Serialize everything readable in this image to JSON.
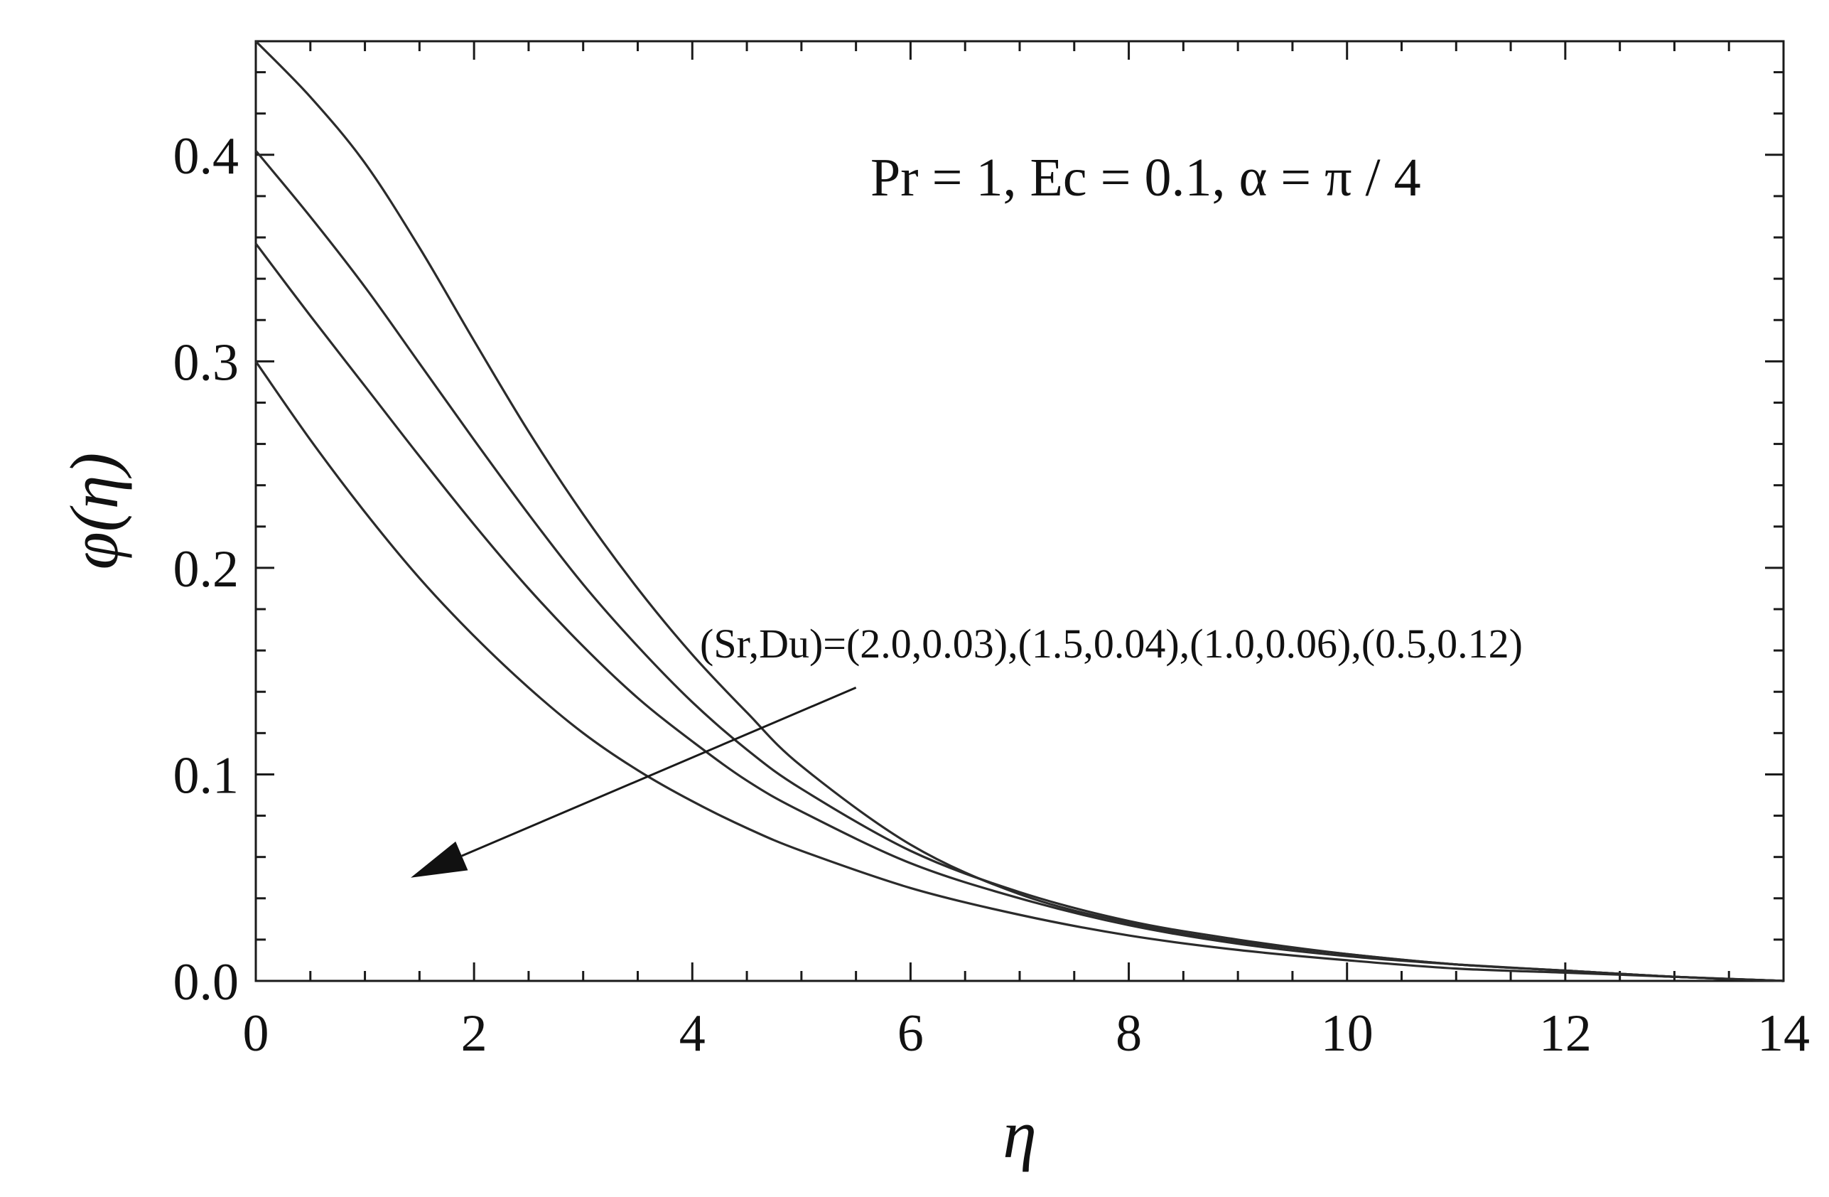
{
  "chart_data": {
    "type": "line",
    "title": "",
    "xlabel": "η",
    "ylabel": "φ(η)",
    "xlim": [
      0,
      14
    ],
    "ylim": [
      0,
      0.455
    ],
    "xticks": [
      0,
      2,
      4,
      6,
      8,
      10,
      12,
      14
    ],
    "xtick_labels": [
      "0",
      "2",
      "4",
      "6",
      "8",
      "10",
      "12",
      "14"
    ],
    "yticks": [
      0,
      0.1,
      0.2,
      0.3,
      0.4
    ],
    "ytick_labels": [
      "0.0",
      "0.1",
      "0.2",
      "0.3",
      "0.4"
    ],
    "grid": false,
    "line_color": "#2b2b2b",
    "annotations": {
      "parameters": "Pr = 1, Ec = 0.1, α = π / 4",
      "arrow_label": "(Sr,Du)=(2.0,0.03),(1.5,0.04),(1.0,0.06),(0.5,0.12)",
      "arrow_start": [
        5.5,
        0.142
      ],
      "arrow_end": [
        1.42,
        0.05
      ]
    },
    "series": [
      {
        "x": [
          0,
          0.5,
          1,
          1.5,
          2,
          2.5,
          3,
          3.5,
          4,
          4.5,
          5,
          6,
          7,
          8,
          9,
          10,
          11,
          12,
          13,
          14
        ],
        "y": [
          0.455,
          0.428,
          0.396,
          0.355,
          0.31,
          0.266,
          0.226,
          0.19,
          0.158,
          0.13,
          0.104,
          0.066,
          0.042,
          0.028,
          0.019,
          0.013,
          0.008,
          0.005,
          0.002,
          0.0
        ]
      },
      {
        "x": [
          0,
          0.5,
          1,
          1.5,
          2,
          2.5,
          3,
          3.5,
          4,
          4.5,
          5,
          6,
          7,
          8,
          9,
          10,
          11,
          12,
          13,
          14
        ],
        "y": [
          0.402,
          0.37,
          0.336,
          0.299,
          0.262,
          0.226,
          0.192,
          0.162,
          0.135,
          0.112,
          0.093,
          0.063,
          0.043,
          0.029,
          0.02,
          0.013,
          0.008,
          0.005,
          0.002,
          0.0
        ]
      },
      {
        "x": [
          0,
          0.5,
          1,
          1.5,
          2,
          2.5,
          3,
          3.5,
          4,
          4.5,
          5,
          6,
          7,
          8,
          9,
          10,
          11,
          12,
          13,
          14
        ],
        "y": [
          0.357,
          0.322,
          0.288,
          0.254,
          0.221,
          0.19,
          0.162,
          0.137,
          0.116,
          0.097,
          0.082,
          0.057,
          0.04,
          0.027,
          0.018,
          0.012,
          0.008,
          0.005,
          0.002,
          0.0
        ]
      },
      {
        "x": [
          0,
          0.5,
          1,
          1.5,
          2,
          2.5,
          3,
          3.5,
          4,
          4.5,
          5,
          6,
          7,
          8,
          9,
          10,
          11,
          12,
          13,
          14
        ],
        "y": [
          0.3,
          0.262,
          0.227,
          0.195,
          0.167,
          0.142,
          0.12,
          0.102,
          0.087,
          0.074,
          0.063,
          0.045,
          0.032,
          0.022,
          0.015,
          0.01,
          0.006,
          0.004,
          0.002,
          0.0
        ]
      }
    ]
  }
}
